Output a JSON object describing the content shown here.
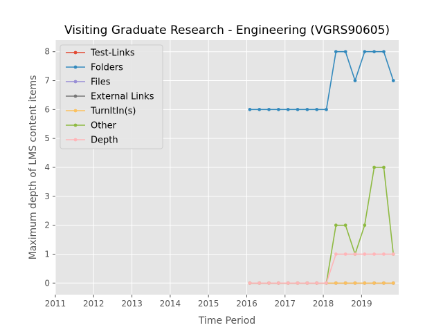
{
  "chart_data": {
    "type": "line",
    "title": "Visiting Graduate Research - Engineering (VGRS90605)",
    "xlabel": "Time Period",
    "ylabel": "Maximum depth of LMS content items",
    "xlim": [
      2011.0,
      2019.97
    ],
    "ylim": [
      -0.4,
      8.4
    ],
    "xticks": [
      2011,
      2012,
      2013,
      2014,
      2015,
      2016,
      2017,
      2018,
      2019
    ],
    "yticks": [
      0,
      1,
      2,
      3,
      4,
      5,
      6,
      7,
      8
    ],
    "grid": true,
    "legend_position": "upper-left",
    "x": [
      2016.08,
      2016.33,
      2016.58,
      2016.83,
      2017.08,
      2017.33,
      2017.58,
      2017.83,
      2018.08,
      2018.33,
      2018.58,
      2018.83,
      2019.08,
      2019.33,
      2019.58,
      2019.83
    ],
    "series": [
      {
        "name": "Test-Links",
        "color": "#E24A33",
        "values": [
          0,
          0,
          0,
          0,
          0,
          0,
          0,
          0,
          0,
          0,
          0,
          0,
          0,
          0,
          0,
          0
        ]
      },
      {
        "name": "Folders",
        "color": "#348ABD",
        "values": [
          6,
          6,
          6,
          6,
          6,
          6,
          6,
          6,
          6,
          8,
          8,
          7,
          8,
          8,
          8,
          7
        ]
      },
      {
        "name": "Files",
        "color": "#988ED5",
        "values": [
          0,
          0,
          0,
          0,
          0,
          0,
          0,
          0,
          0,
          0,
          0,
          0,
          0,
          0,
          0,
          0
        ]
      },
      {
        "name": "External Links",
        "color": "#777777",
        "values": [
          0,
          0,
          0,
          0,
          0,
          0,
          0,
          0,
          0,
          0,
          0,
          0,
          0,
          0,
          0,
          0
        ]
      },
      {
        "name": "TurnItIn(s)",
        "color": "#FBC15E",
        "values": [
          0,
          0,
          0,
          0,
          0,
          0,
          0,
          0,
          0,
          0,
          0,
          0,
          0,
          0,
          0,
          0
        ]
      },
      {
        "name": "Other",
        "color": "#8EBA42",
        "values": [
          0,
          0,
          0,
          0,
          0,
          0,
          0,
          0,
          0,
          2,
          2,
          1,
          2,
          4,
          4,
          1
        ]
      },
      {
        "name": "Depth",
        "color": "#FFB5B8",
        "values": [
          0,
          0,
          0,
          0,
          0,
          0,
          0,
          0,
          0,
          1,
          1,
          1,
          1,
          1,
          1,
          1
        ]
      }
    ]
  }
}
